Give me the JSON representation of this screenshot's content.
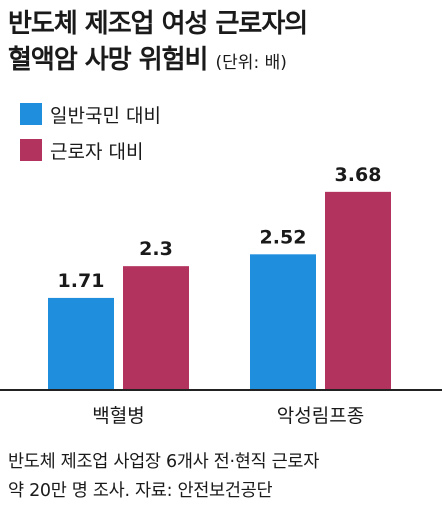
{
  "title_line1": "반도체 제조업 여성 근로자의",
  "title_line2": "혈액암 사망 위험비",
  "unit": "(단위: 배)",
  "colors": {
    "series1": "#1f8fdd",
    "series2": "#b3335f",
    "axis": "#222222"
  },
  "chart_data": {
    "type": "bar",
    "categories": [
      "백혈병",
      "악성림프종"
    ],
    "series": [
      {
        "name": "일반국민 대비",
        "values": [
          1.71,
          2.52
        ]
      },
      {
        "name": "근로자 대비",
        "values": [
          2.3,
          3.68
        ]
      }
    ],
    "data_labels": [
      [
        "1.71",
        "2.52"
      ],
      [
        "2.3",
        "3.68"
      ]
    ],
    "ylim": [
      0,
      5.2
    ],
    "grid": false,
    "legend": "top-left"
  },
  "source_line1": "반도체 제조업 사업장 6개사 전·현직 근로자",
  "source_line2": "약 20만 명 조사. 자료: 안전보건공단"
}
